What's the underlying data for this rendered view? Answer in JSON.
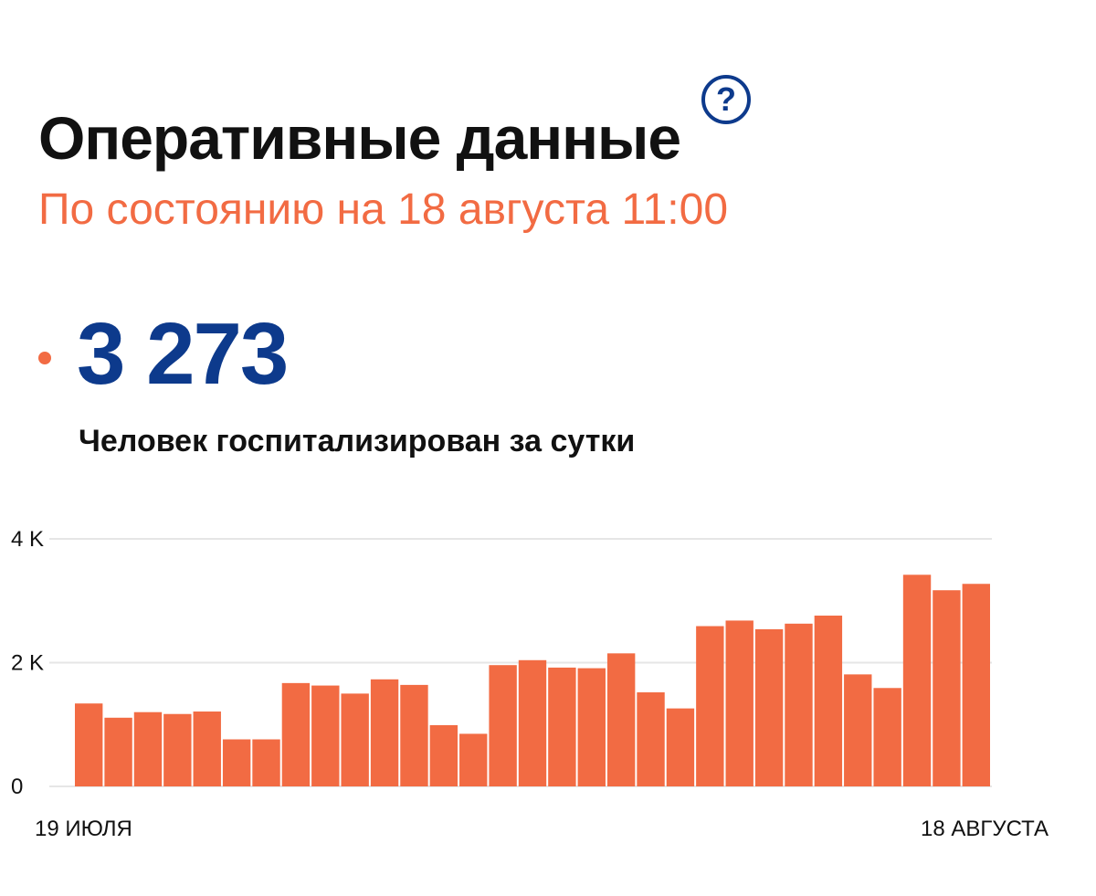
{
  "header": {
    "title": "Оперативные данные",
    "help_label": "?",
    "subtitle": "По состоянию на 18 августа 11:00"
  },
  "metric": {
    "value": "3 273",
    "label": "Человек госпитализирован за сутки"
  },
  "colors": {
    "bar": "#f26b43",
    "accent_blue": "#0d3a8c",
    "gridline": "#e6e6e6"
  },
  "chart_data": {
    "type": "bar",
    "x_start_label": "19 ИЮЛЯ",
    "x_end_label": "18 АВГУСТА",
    "categories": [
      "19.07",
      "20.07",
      "21.07",
      "22.07",
      "23.07",
      "24.07",
      "25.07",
      "26.07",
      "27.07",
      "28.07",
      "29.07",
      "30.07",
      "31.07",
      "01.08",
      "02.08",
      "03.08",
      "04.08",
      "05.08",
      "06.08",
      "07.08",
      "08.08",
      "09.08",
      "10.08",
      "11.08",
      "12.08",
      "13.08",
      "14.08",
      "15.08",
      "16.08",
      "17.08",
      "18.08"
    ],
    "values": [
      1340,
      1110,
      1200,
      1170,
      1210,
      760,
      760,
      1670,
      1630,
      1500,
      1730,
      1640,
      990,
      850,
      1960,
      2040,
      1920,
      1910,
      2150,
      1520,
      1260,
      2590,
      2680,
      2540,
      2630,
      2760,
      1810,
      1590,
      3420,
      3170,
      3273
    ],
    "yticks": [
      {
        "value": 0,
        "label": "0"
      },
      {
        "value": 2000,
        "label": "2 K"
      },
      {
        "value": 4000,
        "label": "4 K"
      }
    ],
    "ylim": [
      0,
      4000
    ],
    "grid": true
  }
}
